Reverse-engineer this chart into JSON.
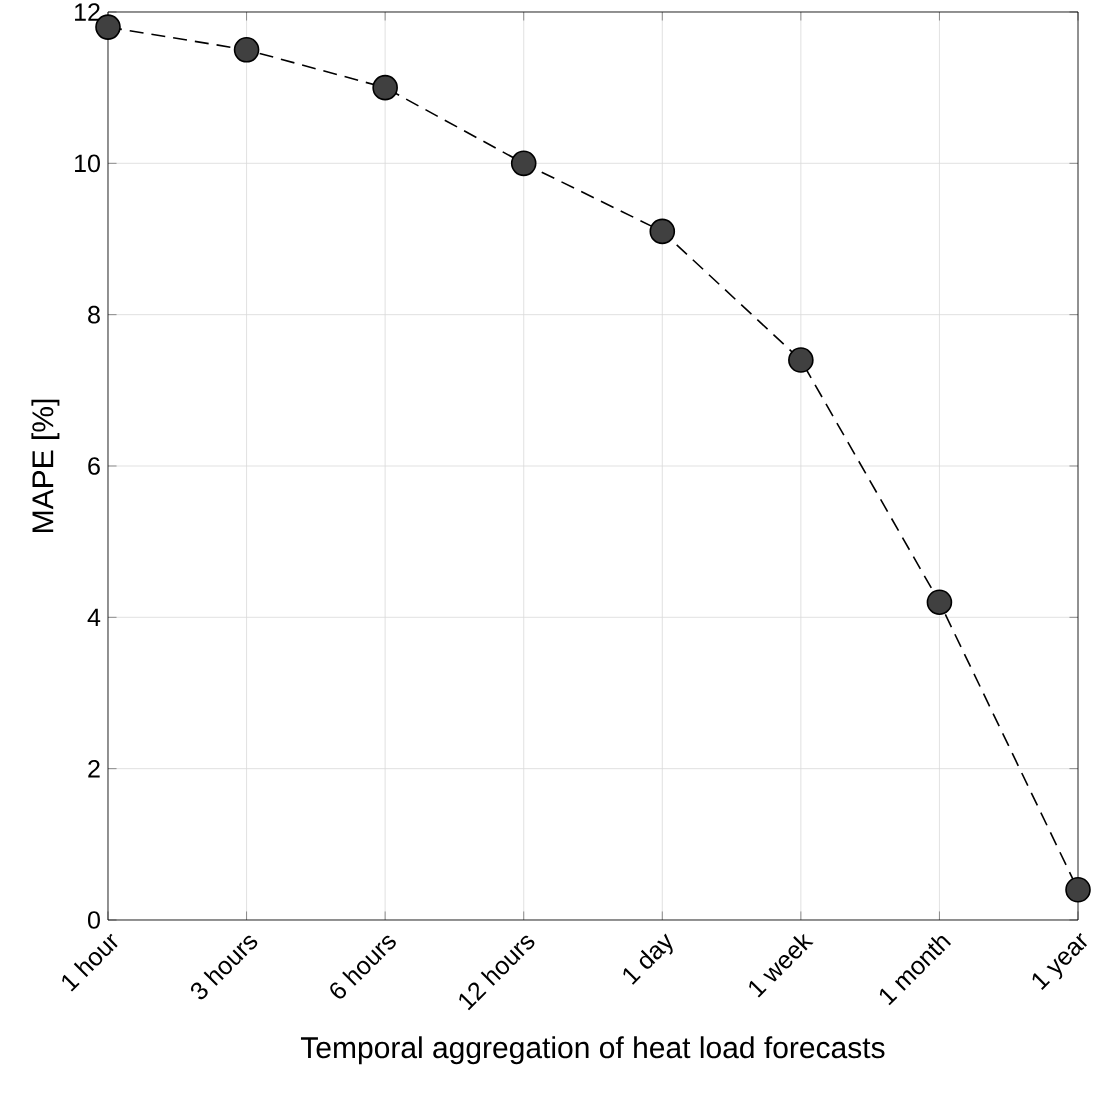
{
  "chart_data": {
    "type": "line",
    "xlabel": "Temporal aggregation of heat load forecasts",
    "ylabel": "MAPE [%]",
    "categories": [
      "1 hour",
      "3 hours",
      "6 hours",
      "12 hours",
      "1 day",
      "1 week",
      "1 month",
      "1 year"
    ],
    "series": [
      {
        "color": "#404040",
        "values": [
          11.8,
          11.5,
          11.0,
          10.0,
          9.1,
          7.4,
          4.2,
          0.4
        ]
      }
    ],
    "ylim": [
      0,
      12
    ],
    "yticks": [
      0,
      2,
      4,
      6,
      8,
      10,
      12
    ],
    "grid": true,
    "legend": false,
    "marker": "circle",
    "line_style": "dashed"
  }
}
